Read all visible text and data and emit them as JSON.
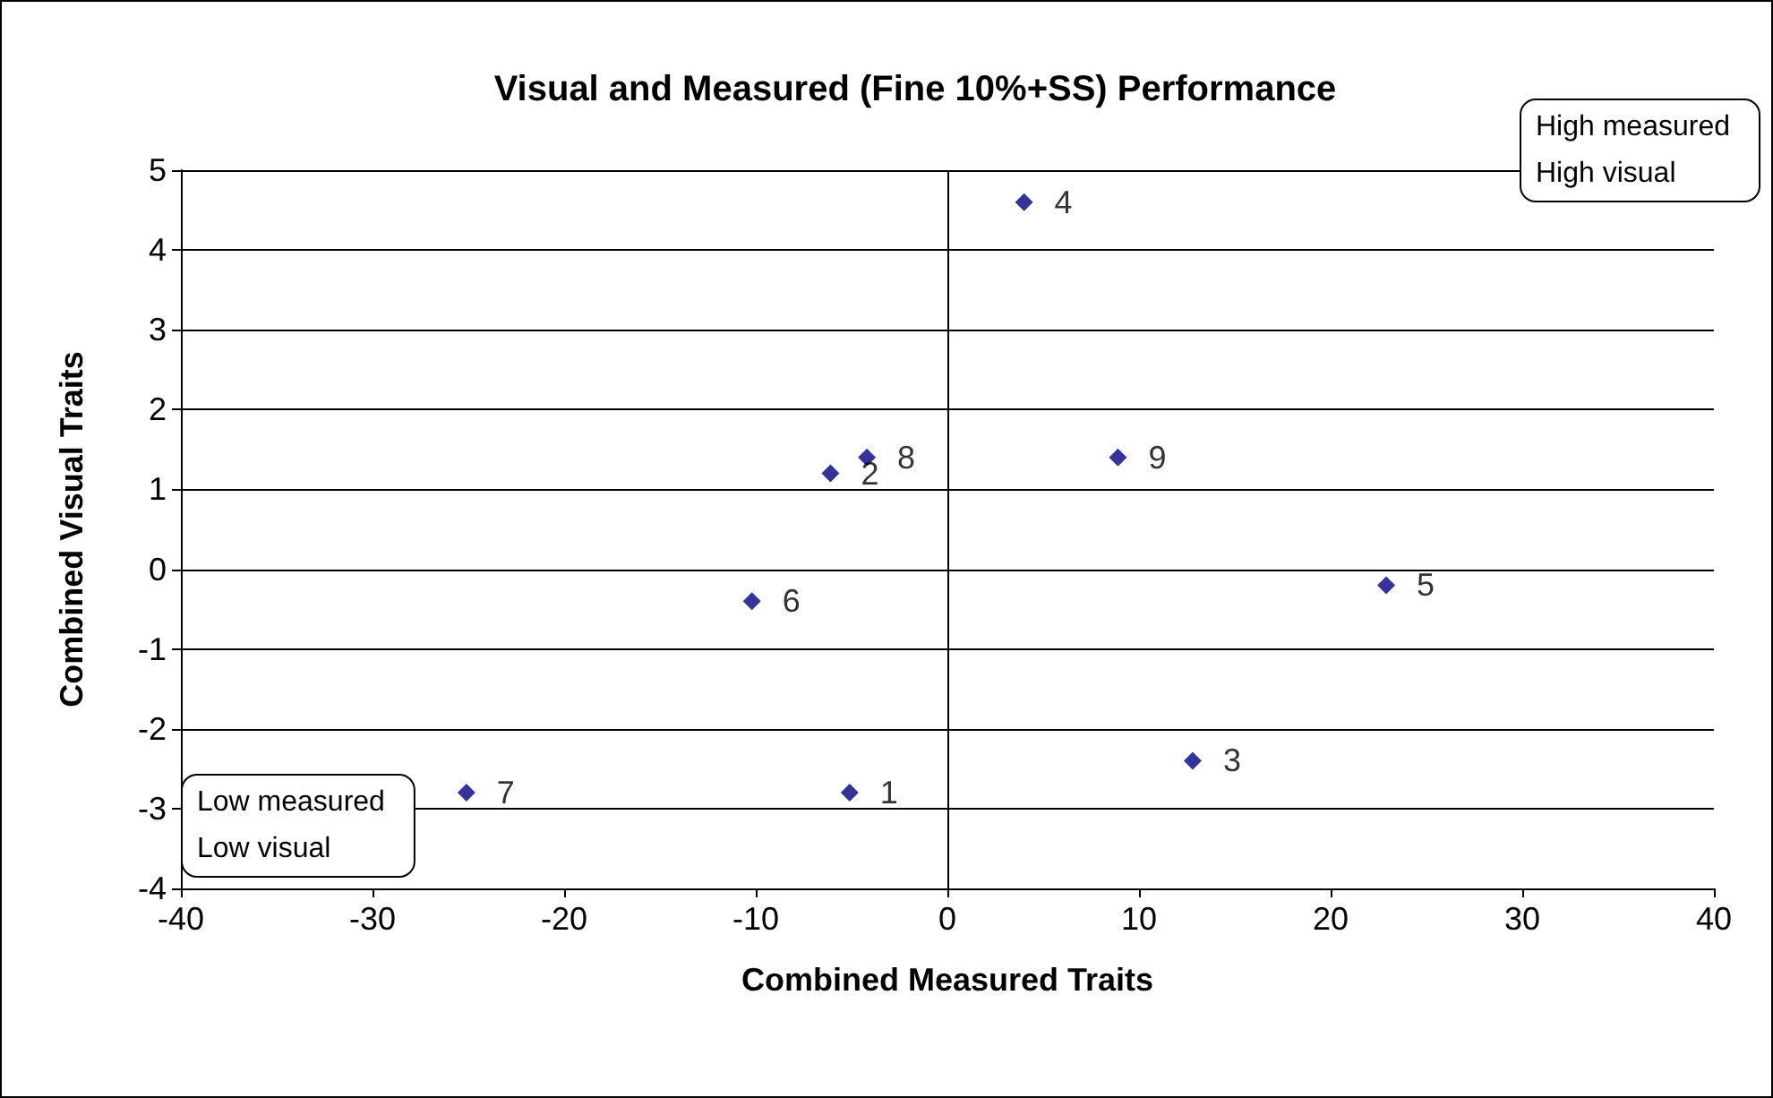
{
  "chart_data": {
    "type": "scatter",
    "title": "Visual and Measured (Fine 10%+SS) Performance",
    "xlabel": "Combined Measured Traits",
    "ylabel": "Combined Visual Traits",
    "series": [
      {
        "name": "1",
        "color": "#000080",
        "x": [
          -5.1
        ],
        "values": [
          -2.8
        ]
      },
      {
        "name": "2",
        "color": "#000080",
        "x": [
          -6.1
        ],
        "values": [
          1.2
        ]
      },
      {
        "name": "3",
        "color": "#000080",
        "x": [
          12.8
        ],
        "values": [
          -2.4
        ]
      },
      {
        "name": "4",
        "color": "#000080",
        "x": [
          4
        ],
        "values": [
          4.6
        ]
      },
      {
        "name": "5",
        "color": "#000080",
        "x": [
          22.9
        ],
        "values": [
          -0.2
        ]
      },
      {
        "name": "6",
        "color": "#000080",
        "x": [
          -10.2
        ],
        "values": [
          -0.4
        ]
      },
      {
        "name": "7",
        "color": "#000080",
        "x": [
          -25.1
        ],
        "values": [
          -2.8
        ]
      },
      {
        "name": "8",
        "color": "#000080",
        "x": [
          -4.2
        ],
        "values": [
          1.4
        ]
      },
      {
        "name": "9",
        "color": "#000080",
        "x": [
          8.9
        ],
        "values": [
          1.4
        ]
      }
    ],
    "marker": "diamond",
    "xlim": [
      -40,
      40
    ],
    "xticks": [
      -40,
      -30,
      -20,
      -10,
      0,
      10,
      20,
      30,
      40
    ],
    "ylim": [
      -4,
      5
    ],
    "yticks": [
      -4,
      -3,
      -2,
      -1,
      0,
      1,
      2,
      3,
      4,
      5
    ],
    "grid": "y",
    "ref_lines": [
      {
        "axis": "x",
        "value": 0,
        "color": "#000000"
      }
    ],
    "annotations": [
      "High measured\nHigh visual",
      "Low measured\nLow visual"
    ]
  }
}
